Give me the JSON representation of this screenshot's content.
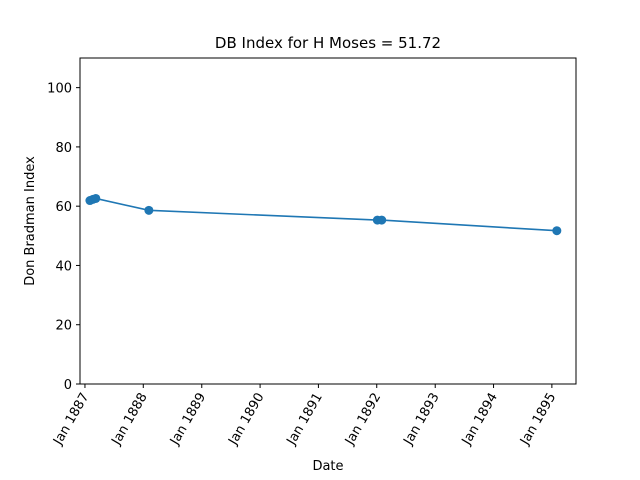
{
  "chart_data": {
    "type": "line",
    "title": "DB Index for H Moses = 51.72",
    "xlabel": "Date",
    "ylabel": "Don Bradman Index",
    "x_ticks": [
      "Jan 1887",
      "Jan 1888",
      "Jan 1889",
      "Jan 1890",
      "Jan 1891",
      "Jan 1892",
      "Jan 1893",
      "Jan 1894",
      "Jan 1895"
    ],
    "y_ticks": [
      "0",
      "20",
      "40",
      "60",
      "80",
      "100"
    ],
    "ylim": [
      0,
      110
    ],
    "xlim": [
      "1886-12-01",
      "1895-06-01"
    ],
    "grid": false,
    "series": [
      {
        "color": "#1f77b4",
        "points": [
          {
            "x": "1887-02-01",
            "y": 61.9
          },
          {
            "x": "1887-02-20",
            "y": 62.3
          },
          {
            "x": "1887-03-10",
            "y": 62.6
          },
          {
            "x": "1888-02-05",
            "y": 58.6
          },
          {
            "x": "1892-01-05",
            "y": 55.3
          },
          {
            "x": "1892-02-01",
            "y": 55.3
          },
          {
            "x": "1895-02-01",
            "y": 51.72
          }
        ]
      }
    ]
  }
}
